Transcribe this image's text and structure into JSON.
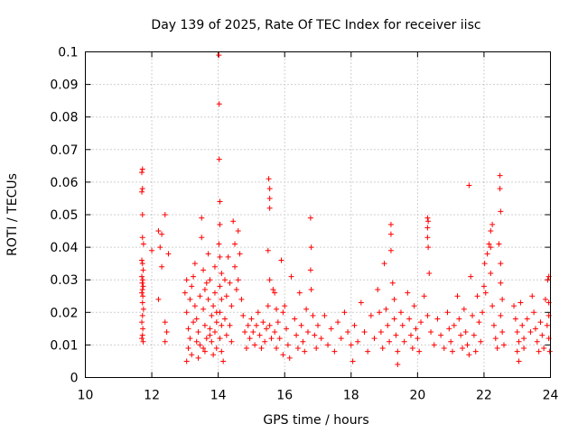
{
  "chart_data": {
    "type": "scatter",
    "title": "Day 139 of 2025, Rate Of TEC Index for receiver iisc",
    "xlabel": "GPS time / hours",
    "ylabel": "ROTI / TECUs",
    "xlim": [
      10,
      24
    ],
    "ylim": [
      0,
      0.1
    ],
    "xticks": [
      "10",
      "12",
      "14",
      "16",
      "18",
      "20",
      "22",
      "24"
    ],
    "yticks": [
      "0",
      "0.01",
      "0.02",
      "0.03",
      "0.04",
      "0.05",
      "0.06",
      "0.07",
      "0.08",
      "0.09",
      "0.1"
    ],
    "grid": true,
    "marker": "+",
    "color": "#ff0000",
    "points": [
      [
        11.72,
        0.064
      ],
      [
        11.7,
        0.063
      ],
      [
        11.72,
        0.058
      ],
      [
        11.7,
        0.057
      ],
      [
        11.72,
        0.05
      ],
      [
        11.72,
        0.043
      ],
      [
        11.75,
        0.041
      ],
      [
        11.7,
        0.036
      ],
      [
        11.72,
        0.035
      ],
      [
        11.74,
        0.033
      ],
      [
        11.7,
        0.031
      ],
      [
        11.73,
        0.03
      ],
      [
        11.71,
        0.029
      ],
      [
        11.74,
        0.028
      ],
      [
        11.72,
        0.027
      ],
      [
        11.7,
        0.026
      ],
      [
        11.73,
        0.025
      ],
      [
        11.72,
        0.023
      ],
      [
        11.75,
        0.021
      ],
      [
        11.72,
        0.019
      ],
      [
        11.7,
        0.017
      ],
      [
        11.73,
        0.015
      ],
      [
        11.72,
        0.013
      ],
      [
        11.7,
        0.012
      ],
      [
        11.74,
        0.011
      ],
      [
        12.0,
        0.039
      ],
      [
        12.2,
        0.045
      ],
      [
        12.3,
        0.044
      ],
      [
        12.4,
        0.05
      ],
      [
        12.25,
        0.04
      ],
      [
        12.3,
        0.034
      ],
      [
        12.2,
        0.024
      ],
      [
        12.4,
        0.017
      ],
      [
        12.45,
        0.014
      ],
      [
        12.4,
        0.011
      ],
      [
        12.5,
        0.038
      ],
      [
        13.0,
        0.026
      ],
      [
        13.05,
        0.02
      ],
      [
        13.1,
        0.015
      ],
      [
        13.15,
        0.012
      ],
      [
        13.1,
        0.009
      ],
      [
        13.2,
        0.007
      ],
      [
        13.05,
        0.005
      ],
      [
        13.2,
        0.028
      ],
      [
        13.25,
        0.031
      ],
      [
        13.3,
        0.035
      ],
      [
        13.3,
        0.022
      ],
      [
        13.35,
        0.018
      ],
      [
        13.4,
        0.014
      ],
      [
        13.45,
        0.01
      ],
      [
        13.4,
        0.006
      ],
      [
        13.5,
        0.049
      ],
      [
        13.5,
        0.043
      ],
      [
        13.55,
        0.033
      ],
      [
        13.6,
        0.027
      ],
      [
        13.55,
        0.021
      ],
      [
        13.6,
        0.016
      ],
      [
        13.65,
        0.012
      ],
      [
        13.6,
        0.008
      ],
      [
        13.7,
        0.038
      ],
      [
        13.75,
        0.03
      ],
      [
        13.7,
        0.024
      ],
      [
        13.8,
        0.019
      ],
      [
        13.75,
        0.015
      ],
      [
        13.8,
        0.011
      ],
      [
        13.85,
        0.007
      ],
      [
        13.9,
        0.034
      ],
      [
        13.9,
        0.026
      ],
      [
        13.95,
        0.02
      ],
      [
        13.9,
        0.014
      ],
      [
        13.95,
        0.009
      ],
      [
        13.05,
        0.03
      ],
      [
        13.15,
        0.024
      ],
      [
        13.25,
        0.017
      ],
      [
        13.35,
        0.011
      ],
      [
        13.45,
        0.025
      ],
      [
        13.65,
        0.029
      ],
      [
        13.85,
        0.022
      ],
      [
        13.55,
        0.009
      ],
      [
        13.75,
        0.013
      ],
      [
        13.95,
        0.017
      ],
      [
        14.02,
        0.099
      ],
      [
        14.03,
        0.084
      ],
      [
        14.03,
        0.067
      ],
      [
        14.05,
        0.054
      ],
      [
        14.05,
        0.047
      ],
      [
        14.02,
        0.041
      ],
      [
        14.05,
        0.037
      ],
      [
        14.1,
        0.032
      ],
      [
        14.05,
        0.028
      ],
      [
        14.1,
        0.024
      ],
      [
        14.05,
        0.02
      ],
      [
        14.1,
        0.016
      ],
      [
        14.05,
        0.012
      ],
      [
        14.1,
        0.008
      ],
      [
        14.15,
        0.005
      ],
      [
        14.2,
        0.03
      ],
      [
        14.25,
        0.025
      ],
      [
        14.2,
        0.018
      ],
      [
        14.25,
        0.013
      ],
      [
        14.3,
        0.037
      ],
      [
        14.35,
        0.029
      ],
      [
        14.4,
        0.022
      ],
      [
        14.35,
        0.016
      ],
      [
        14.4,
        0.011
      ],
      [
        14.45,
        0.048
      ],
      [
        14.5,
        0.041
      ],
      [
        14.5,
        0.034
      ],
      [
        14.55,
        0.027
      ],
      [
        14.6,
        0.045
      ],
      [
        14.65,
        0.038
      ],
      [
        14.6,
        0.03
      ],
      [
        14.7,
        0.024
      ],
      [
        14.75,
        0.019
      ],
      [
        14.8,
        0.014
      ],
      [
        14.85,
        0.009
      ],
      [
        14.9,
        0.016
      ],
      [
        14.95,
        0.012
      ],
      [
        15.0,
        0.018
      ],
      [
        15.05,
        0.014
      ],
      [
        15.1,
        0.01
      ],
      [
        15.15,
        0.016
      ],
      [
        15.2,
        0.02
      ],
      [
        15.25,
        0.013
      ],
      [
        15.3,
        0.009
      ],
      [
        15.35,
        0.017
      ],
      [
        15.4,
        0.011
      ],
      [
        15.45,
        0.015
      ],
      [
        15.52,
        0.061
      ],
      [
        15.55,
        0.058
      ],
      [
        15.55,
        0.055
      ],
      [
        15.55,
        0.052
      ],
      [
        15.5,
        0.039
      ],
      [
        15.55,
        0.03
      ],
      [
        15.5,
        0.022
      ],
      [
        15.55,
        0.016
      ],
      [
        15.6,
        0.012
      ],
      [
        15.65,
        0.027
      ],
      [
        15.7,
        0.026
      ],
      [
        15.75,
        0.021
      ],
      [
        15.7,
        0.014
      ],
      [
        15.75,
        0.009
      ],
      [
        15.8,
        0.017
      ],
      [
        15.85,
        0.012
      ],
      [
        15.9,
        0.036
      ],
      [
        15.95,
        0.02
      ],
      [
        15.95,
        0.007
      ],
      [
        16.0,
        0.022
      ],
      [
        16.05,
        0.015
      ],
      [
        16.1,
        0.01
      ],
      [
        16.15,
        0.006
      ],
      [
        16.2,
        0.031
      ],
      [
        16.3,
        0.018
      ],
      [
        16.35,
        0.013
      ],
      [
        16.4,
        0.009
      ],
      [
        16.45,
        0.026
      ],
      [
        16.5,
        0.016
      ],
      [
        16.55,
        0.011
      ],
      [
        16.6,
        0.008
      ],
      [
        16.65,
        0.021
      ],
      [
        16.7,
        0.014
      ],
      [
        16.78,
        0.049
      ],
      [
        16.8,
        0.04
      ],
      [
        16.78,
        0.033
      ],
      [
        16.8,
        0.027
      ],
      [
        16.85,
        0.019
      ],
      [
        16.9,
        0.013
      ],
      [
        16.95,
        0.009
      ],
      [
        17.0,
        0.016
      ],
      [
        17.1,
        0.012
      ],
      [
        17.2,
        0.019
      ],
      [
        17.3,
        0.01
      ],
      [
        17.4,
        0.015
      ],
      [
        17.5,
        0.008
      ],
      [
        17.6,
        0.017
      ],
      [
        17.7,
        0.012
      ],
      [
        17.8,
        0.02
      ],
      [
        17.9,
        0.014
      ],
      [
        18.0,
        0.01
      ],
      [
        18.05,
        0.005
      ],
      [
        18.1,
        0.016
      ],
      [
        18.2,
        0.011
      ],
      [
        18.3,
        0.023
      ],
      [
        18.4,
        0.014
      ],
      [
        18.5,
        0.008
      ],
      [
        18.6,
        0.019
      ],
      [
        18.7,
        0.012
      ],
      [
        18.8,
        0.027
      ],
      [
        18.85,
        0.02
      ],
      [
        18.9,
        0.014
      ],
      [
        18.95,
        0.009
      ],
      [
        19.0,
        0.035
      ],
      [
        19.05,
        0.021
      ],
      [
        19.1,
        0.016
      ],
      [
        19.15,
        0.011
      ],
      [
        19.2,
        0.047
      ],
      [
        19.2,
        0.044
      ],
      [
        19.2,
        0.039
      ],
      [
        19.25,
        0.029
      ],
      [
        19.3,
        0.024
      ],
      [
        19.3,
        0.018
      ],
      [
        19.35,
        0.013
      ],
      [
        19.4,
        0.008
      ],
      [
        19.4,
        0.004
      ],
      [
        19.5,
        0.02
      ],
      [
        19.55,
        0.016
      ],
      [
        19.6,
        0.011
      ],
      [
        19.7,
        0.026
      ],
      [
        19.75,
        0.018
      ],
      [
        19.8,
        0.013
      ],
      [
        19.85,
        0.009
      ],
      [
        19.9,
        0.022
      ],
      [
        19.95,
        0.015
      ],
      [
        20.0,
        0.012
      ],
      [
        20.05,
        0.008
      ],
      [
        20.1,
        0.017
      ],
      [
        20.2,
        0.025
      ],
      [
        20.3,
        0.049
      ],
      [
        20.32,
        0.048
      ],
      [
        20.3,
        0.046
      ],
      [
        20.3,
        0.043
      ],
      [
        20.32,
        0.04
      ],
      [
        20.35,
        0.032
      ],
      [
        20.3,
        0.019
      ],
      [
        20.4,
        0.014
      ],
      [
        20.5,
        0.01
      ],
      [
        20.6,
        0.018
      ],
      [
        20.7,
        0.013
      ],
      [
        20.8,
        0.009
      ],
      [
        20.9,
        0.02
      ],
      [
        20.95,
        0.015
      ],
      [
        21.0,
        0.011
      ],
      [
        21.05,
        0.008
      ],
      [
        21.1,
        0.016
      ],
      [
        21.2,
        0.025
      ],
      [
        21.25,
        0.018
      ],
      [
        21.3,
        0.013
      ],
      [
        21.35,
        0.009
      ],
      [
        21.4,
        0.021
      ],
      [
        21.45,
        0.014
      ],
      [
        21.5,
        0.01
      ],
      [
        21.55,
        0.059
      ],
      [
        21.55,
        0.007
      ],
      [
        21.6,
        0.031
      ],
      [
        21.65,
        0.019
      ],
      [
        21.7,
        0.013
      ],
      [
        21.75,
        0.008
      ],
      [
        21.8,
        0.025
      ],
      [
        21.85,
        0.017
      ],
      [
        21.9,
        0.011
      ],
      [
        21.95,
        0.02
      ],
      [
        22.0,
        0.028
      ],
      [
        22.02,
        0.035
      ],
      [
        22.05,
        0.026
      ],
      [
        22.1,
        0.038
      ],
      [
        22.15,
        0.041
      ],
      [
        22.2,
        0.04
      ],
      [
        22.2,
        0.045
      ],
      [
        22.25,
        0.047
      ],
      [
        22.2,
        0.032
      ],
      [
        22.25,
        0.022
      ],
      [
        22.3,
        0.016
      ],
      [
        22.35,
        0.012
      ],
      [
        22.4,
        0.009
      ],
      [
        22.48,
        0.062
      ],
      [
        22.48,
        0.058
      ],
      [
        22.5,
        0.051
      ],
      [
        22.45,
        0.041
      ],
      [
        22.5,
        0.035
      ],
      [
        22.5,
        0.029
      ],
      [
        22.55,
        0.024
      ],
      [
        22.5,
        0.019
      ],
      [
        22.55,
        0.014
      ],
      [
        22.6,
        0.01
      ],
      [
        22.9,
        0.022
      ],
      [
        22.95,
        0.018
      ],
      [
        23.0,
        0.014
      ],
      [
        23.05,
        0.011
      ],
      [
        23.0,
        0.008
      ],
      [
        23.05,
        0.005
      ],
      [
        23.1,
        0.023
      ],
      [
        23.15,
        0.016
      ],
      [
        23.2,
        0.012
      ],
      [
        23.2,
        0.009
      ],
      [
        23.3,
        0.018
      ],
      [
        23.4,
        0.014
      ],
      [
        23.45,
        0.025
      ],
      [
        23.5,
        0.02
      ],
      [
        23.55,
        0.015
      ],
      [
        23.6,
        0.011
      ],
      [
        23.65,
        0.008
      ],
      [
        23.7,
        0.017
      ],
      [
        23.75,
        0.013
      ],
      [
        23.8,
        0.009
      ],
      [
        23.85,
        0.024
      ],
      [
        23.9,
        0.016
      ],
      [
        23.92,
        0.03
      ],
      [
        23.95,
        0.031
      ],
      [
        23.95,
        0.012
      ],
      [
        23.98,
        0.008
      ],
      [
        23.95,
        0.019
      ],
      [
        23.95,
        0.023
      ]
    ]
  }
}
